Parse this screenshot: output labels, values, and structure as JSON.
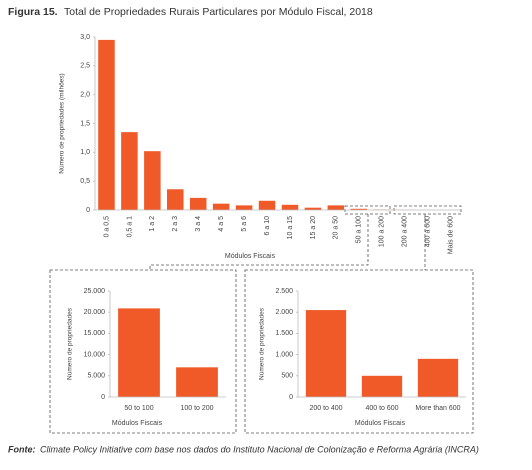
{
  "figure_label": "Figura 15.",
  "title": "Total de Propriedades Rurais Particulares por Módulo Fiscal, 2018",
  "source_label": "Fonte:",
  "source": "Climate Policy Initiative com base nos dados do Instituto Nacional de Colonização e Reforma Agrária (INCRA)",
  "chart_data": [
    {
      "type": "bar",
      "color": "#f05a28",
      "y_label": "Número de propriedades (milhões)",
      "x_label": "Módulos Fiscais",
      "categories": [
        "0 a 0,5",
        "0,5 a 1",
        "1 a 2",
        "2 a 3",
        "3 a 4",
        "4 a 5",
        "5 a 6",
        "6 a 10",
        "10 a 15",
        "15 a 20",
        "20 a 50",
        "50 a 100",
        "100 a 200",
        "200 a 400",
        "400 a 600",
        "Mais de 600"
      ],
      "values": [
        2.95,
        1.35,
        1.02,
        0.36,
        0.21,
        0.11,
        0.08,
        0.16,
        0.09,
        0.04,
        0.08,
        0.021,
        0.007,
        0.002,
        0.0005,
        0.0009
      ],
      "ylim": [
        0,
        3
      ],
      "yticks": [
        0,
        {
          "value": 0.5,
          "label": "0,5"
        },
        {
          "value": 1,
          "label": "1,0"
        },
        {
          "value": 1.5,
          "label": "1,5"
        },
        {
          "value": 2,
          "label": "2,0"
        },
        {
          "value": 2.5,
          "label": "2,5"
        },
        {
          "value": 3,
          "label": "3,0"
        }
      ],
      "grid": false
    },
    {
      "type": "bar",
      "color": "#f05a28",
      "y_label": "Número de propriedades",
      "x_label": "Módulos Fiscais",
      "categories": [
        "50 to 100",
        "100 to 200"
      ],
      "values": [
        20900,
        7000
      ],
      "ylim": [
        0,
        25000
      ],
      "yticks": [
        0,
        {
          "value": 5000,
          "label": "5.000"
        },
        {
          "value": 10000,
          "label": "10.000"
        },
        {
          "value": 15000,
          "label": "15.000"
        },
        {
          "value": 20000,
          "label": "20.000"
        },
        {
          "value": 25000,
          "label": "25.000"
        }
      ],
      "grid": false
    },
    {
      "type": "bar",
      "color": "#f05a28",
      "y_label": "Número de propriedades",
      "x_label": "Módulos Fiscais",
      "categories": [
        "200 to 400",
        "400 to 600",
        "More than 600"
      ],
      "values": [
        2050,
        500,
        900
      ],
      "ylim": [
        0,
        2500
      ],
      "yticks": [
        0,
        500,
        {
          "value": 1000,
          "label": "1.000"
        },
        {
          "value": 1500,
          "label": "1.500"
        },
        {
          "value": 2000,
          "label": "2.000"
        },
        {
          "value": 2500,
          "label": "2.500"
        }
      ],
      "grid": false
    }
  ]
}
